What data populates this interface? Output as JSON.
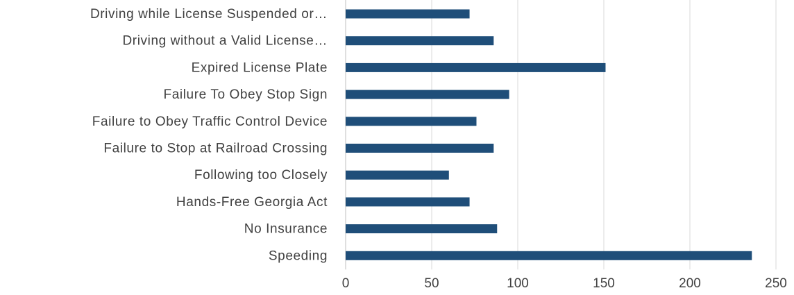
{
  "chart_data": {
    "type": "bar",
    "orientation": "horizontal",
    "categories": [
      "Driving while License Suspended or…",
      "Driving without a Valid License…",
      "Expired License Plate",
      "Failure To Obey Stop Sign",
      "Failure to Obey Traffic Control Device",
      "Failure to Stop at Railroad Crossing",
      "Following too Closely",
      "Hands-Free Georgia Act",
      "No Insurance",
      "Speeding"
    ],
    "values": [
      72,
      86,
      151,
      95,
      76,
      86,
      60,
      72,
      88,
      236
    ],
    "xlim": [
      0,
      250
    ],
    "ticks": [
      "0",
      "50",
      "100",
      "150",
      "200",
      "250"
    ],
    "grid": true,
    "bar_color": "#1f4e79",
    "title": "",
    "xlabel": "",
    "ylabel": ""
  }
}
